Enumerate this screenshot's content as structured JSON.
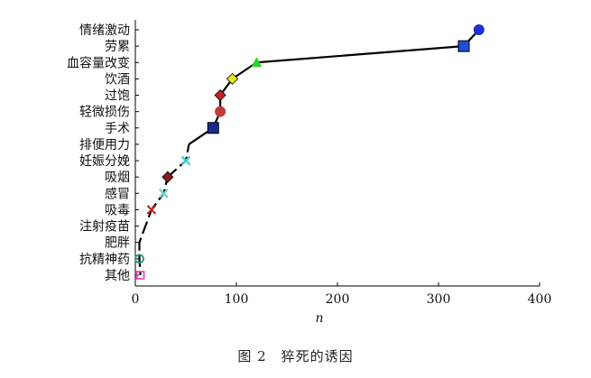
{
  "chart_data": {
    "type": "scatter",
    "xlabel": "n",
    "xlim": [
      0,
      400
    ],
    "xticks": [
      0,
      100,
      200,
      300,
      400
    ],
    "categories": [
      "情绪激动",
      "劳累",
      "血容量改变",
      "饮酒",
      "过饱",
      "轻微损伤",
      "手术",
      "排便用力",
      "妊娠分娩",
      "吸烟",
      "感冒",
      "吸毒",
      "注射疫苗",
      "肥胖",
      "抗精神药",
      "其他"
    ],
    "points": [
      {
        "category": "情绪激动",
        "x": 340,
        "marker": "circle",
        "color": "#1f2fd0"
      },
      {
        "category": "劳累",
        "x": 325,
        "marker": "square",
        "color": "#1f4fd8"
      },
      {
        "category": "血容量改变",
        "x": 120,
        "marker": "triangle",
        "color": "#33cc33"
      },
      {
        "category": "饮酒",
        "x": 96,
        "marker": "diamond",
        "color": "#e8e822"
      },
      {
        "category": "过饱",
        "x": 84,
        "marker": "diamond",
        "color": "#cc2222"
      },
      {
        "category": "轻微损伤",
        "x": 84,
        "marker": "circle",
        "color": "#c23a3a"
      },
      {
        "category": "手术",
        "x": 77,
        "marker": "square",
        "color": "#1a2a8a"
      },
      {
        "category": "排便用力",
        "x": 53,
        "marker": "none",
        "color": "#111111"
      },
      {
        "category": "妊娠分娩",
        "x": 50,
        "marker": "x",
        "color": "#44cccc"
      },
      {
        "category": "吸烟",
        "x": 32,
        "marker": "diamond",
        "color": "#8b1a1a"
      },
      {
        "category": "感冒",
        "x": 28,
        "marker": "x",
        "color": "#66cccc"
      },
      {
        "category": "吸毒",
        "x": 16,
        "marker": "x",
        "color": "#cc2222"
      },
      {
        "category": "注射疫苗",
        "x": 10,
        "marker": "none",
        "color": "#111111"
      },
      {
        "category": "肥胖",
        "x": 4,
        "marker": "none",
        "color": "#111111"
      },
      {
        "category": "抗精神药",
        "x": 4,
        "marker": "circle-open",
        "color": "#2a9a7a"
      },
      {
        "category": "其他",
        "x": 5,
        "marker": "square-open",
        "color": "#e040c0"
      }
    ],
    "line_color": "#000000",
    "grid": false,
    "legend": "none"
  },
  "caption": "图 2　猝死的诱因"
}
